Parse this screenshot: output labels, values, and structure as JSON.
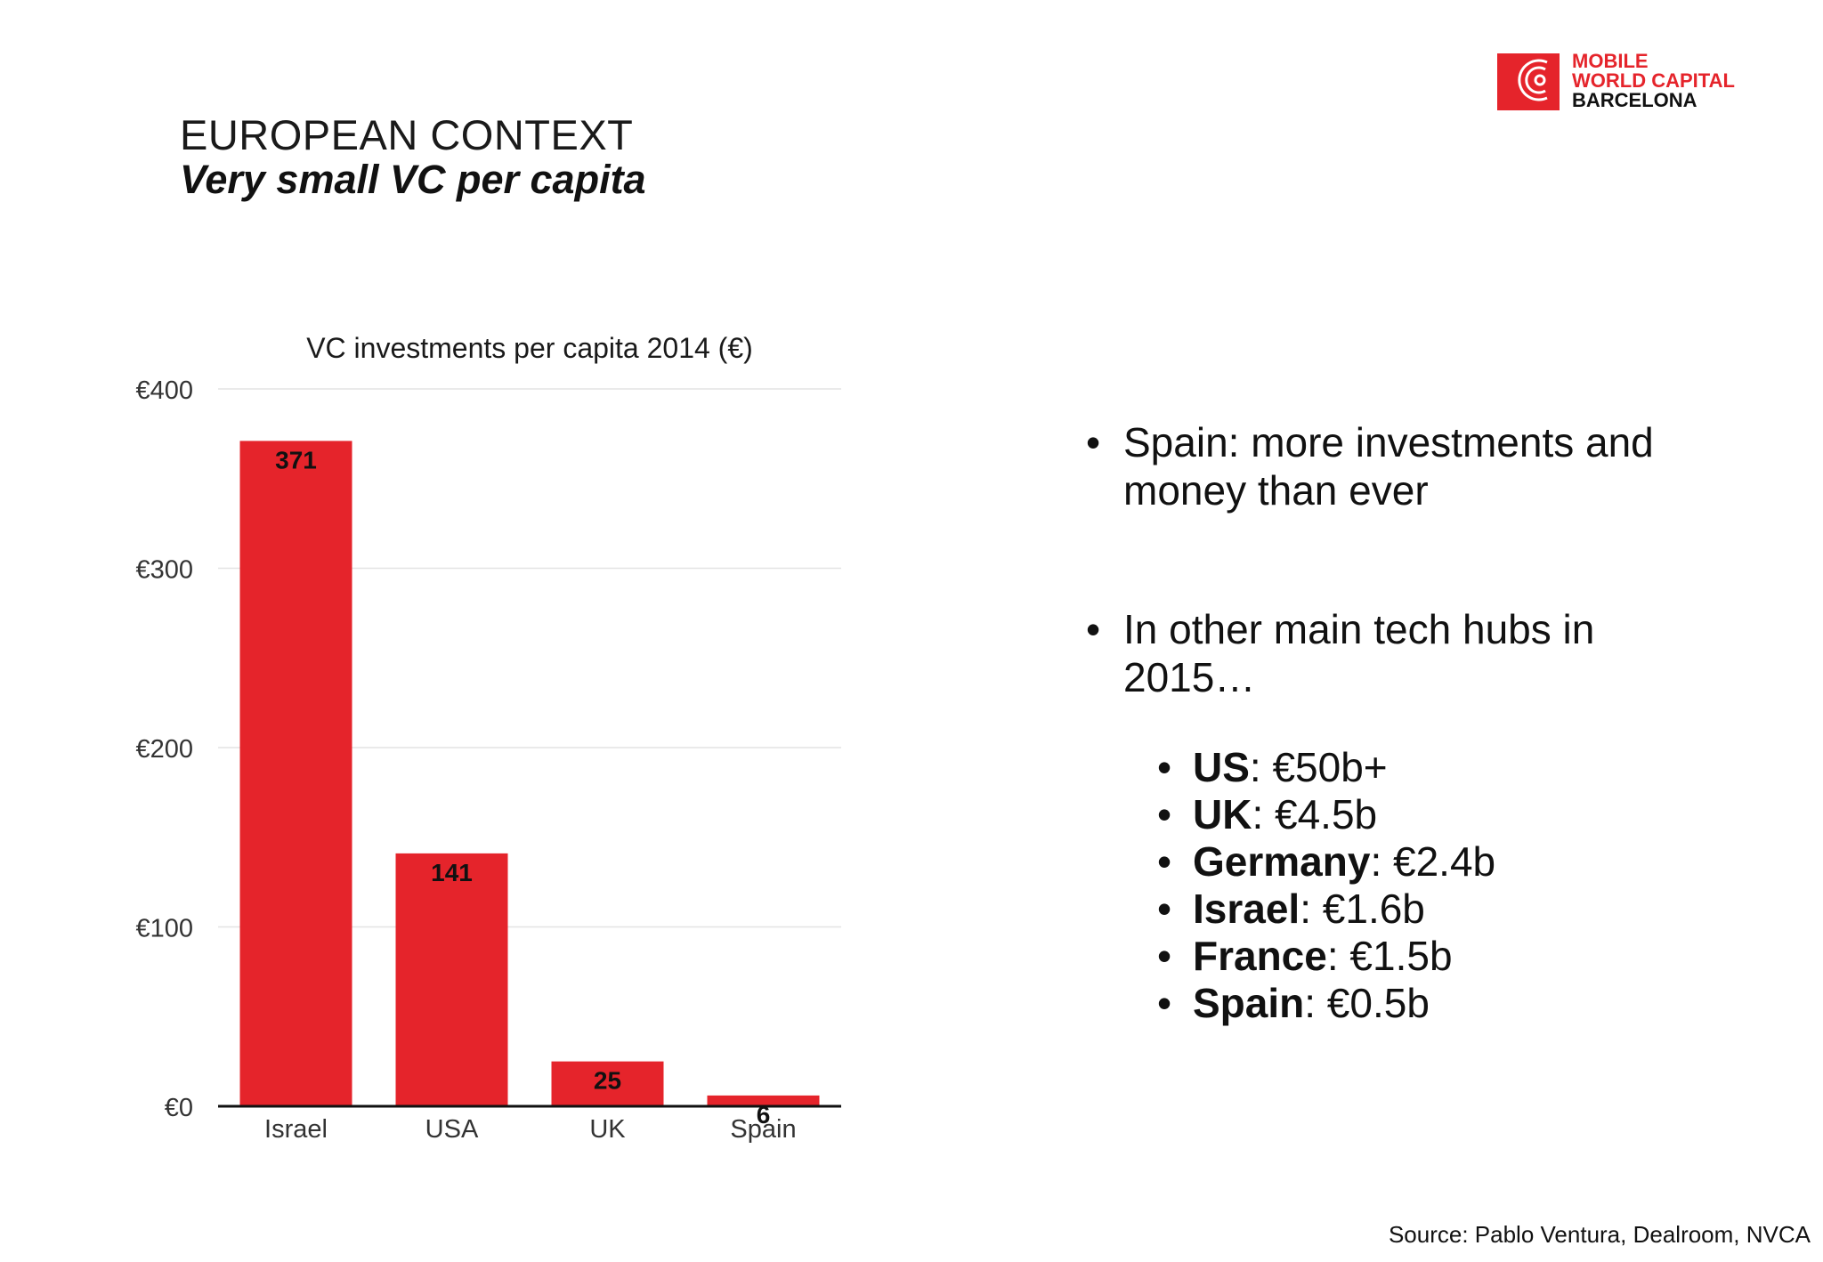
{
  "header": {
    "context": "EUROPEAN CONTEXT",
    "title": "Very small VC per capita"
  },
  "logo": {
    "line1": "MOBILE",
    "line2": "WORLD CAPITAL",
    "line3": "BARCELONA",
    "brand_color": "#e5242b"
  },
  "chart_data": {
    "type": "bar",
    "title": "VC investments per capita 2014 (€)",
    "categories": [
      "Israel",
      "USA",
      "UK",
      "Spain"
    ],
    "values": [
      371,
      141,
      25,
      6
    ],
    "data_labels": [
      "371",
      "141",
      "25",
      "6"
    ],
    "ylim": [
      0,
      400
    ],
    "yticks": [
      0,
      100,
      200,
      300,
      400
    ],
    "ytick_labels": [
      "€0",
      "€100",
      "€200",
      "€300",
      "€400"
    ],
    "xlabel": "",
    "ylabel": "",
    "grid": true,
    "bar_color": "#e5242b"
  },
  "bullets": [
    {
      "text": "Spain: more investments and money than ever"
    },
    {
      "text": "In other main tech hubs in 2015…"
    }
  ],
  "hubs": [
    {
      "name": "US",
      "value": ": €50b+"
    },
    {
      "name": "UK",
      "value": ": €4.5b"
    },
    {
      "name": "Germany",
      "value": ": €2.4b"
    },
    {
      "name": "Israel",
      "value": ": €1.6b"
    },
    {
      "name": "France",
      "value": ": €1.5b"
    },
    {
      "name": "Spain",
      "value": ": €0.5b"
    }
  ],
  "source": "Source: Pablo Ventura, Dealroom, NVCA"
}
